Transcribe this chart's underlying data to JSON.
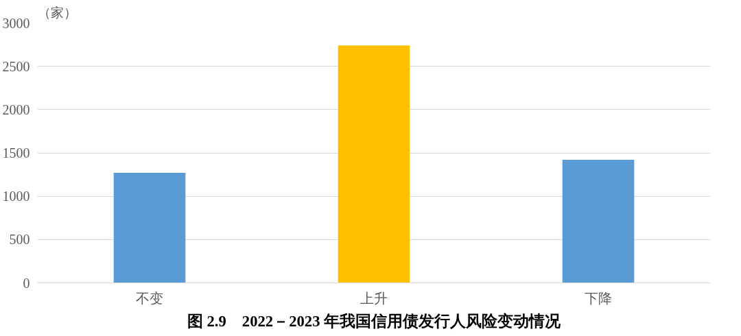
{
  "chart_data": {
    "type": "bar",
    "title": "图 2.9　2022－2023 年我国信用债发行人风险变动情况",
    "ylabel": "（家）",
    "categories": [
      "不变",
      "上升",
      "下降"
    ],
    "values": [
      1270,
      2740,
      1420
    ],
    "colors": [
      "#5b9bd5",
      "#ffc000",
      "#5b9bd5"
    ],
    "ylim": [
      0,
      3000
    ],
    "yticks": [
      0,
      500,
      1000,
      1500,
      2000,
      2500,
      3000
    ],
    "grid": "y"
  }
}
